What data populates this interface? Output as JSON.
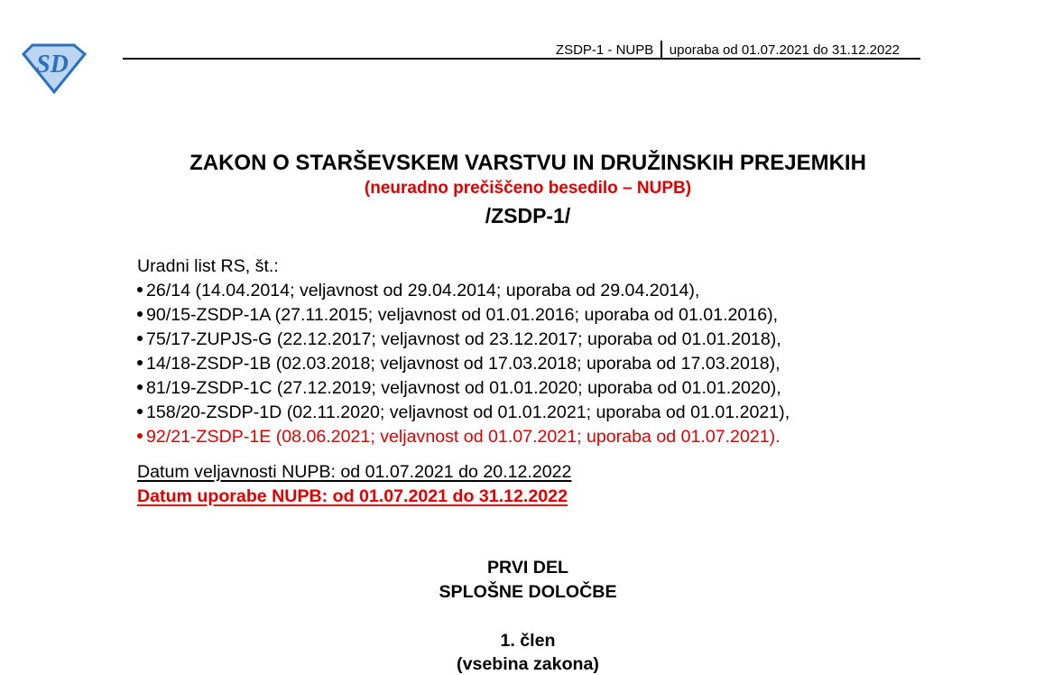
{
  "header": {
    "doc_code": "ZSDP-1 - NUPB",
    "usage": "uporaba od 01.07.2021 do 31.12.2022",
    "logo_text": "SD"
  },
  "colors": {
    "accent_red": "#e00000",
    "logo_blue": "#2a6fc0",
    "logo_light": "#bcd6f2"
  },
  "title": "ZAKON O STARŠEVSKEM VARSTVU IN DRUŽINSKIH PREJEMKIH",
  "subtitle": "(neuradno prečiščeno besedilo – NUPB)",
  "abbreviation": "/ZSDP-1/",
  "gazette_label": "Uradni list RS, št.:",
  "gazette_items": [
    {
      "text": "26/14 (14.04.2014; veljavnost od 29.04.2014; uporaba od 29.04.2014),",
      "highlight": false
    },
    {
      "text": "90/15-ZSDP-1A (27.11.2015; veljavnost od 01.01.2016; uporaba od 01.01.2016),",
      "highlight": false
    },
    {
      "text": "75/17-ZUPJS-G (22.12.2017; veljavnost od 23.12.2017; uporaba od 01.01.2018),",
      "highlight": false
    },
    {
      "text": "14/18-ZSDP-1B (02.03.2018; veljavnost od 17.03.2018; uporaba od 17.03.2018),",
      "highlight": false
    },
    {
      "text": "81/19-ZSDP-1C (27.12.2019; veljavnost od 01.01.2020; uporaba od 01.01.2020),",
      "highlight": false
    },
    {
      "text": "158/20-ZSDP-1D (02.11.2020; veljavnost od 01.01.2021; uporaba od 01.01.2021),",
      "highlight": false
    },
    {
      "text": "92/21-ZSDP-1E (08.06.2021; veljavnost od 01.07.2021; uporaba od 01.07.2021).",
      "highlight": true
    }
  ],
  "validity_date": "Datum veljavnosti NUPB: od 01.07.2021 do 20.12.2022",
  "usage_date": "Datum uporabe NUPB: od 01.07.2021 do 31.12.2022",
  "part": "PRVI DEL",
  "part_title": "SPLOŠNE DOLOČBE",
  "article": "1. člen",
  "article_title": "(vsebina zakona)"
}
